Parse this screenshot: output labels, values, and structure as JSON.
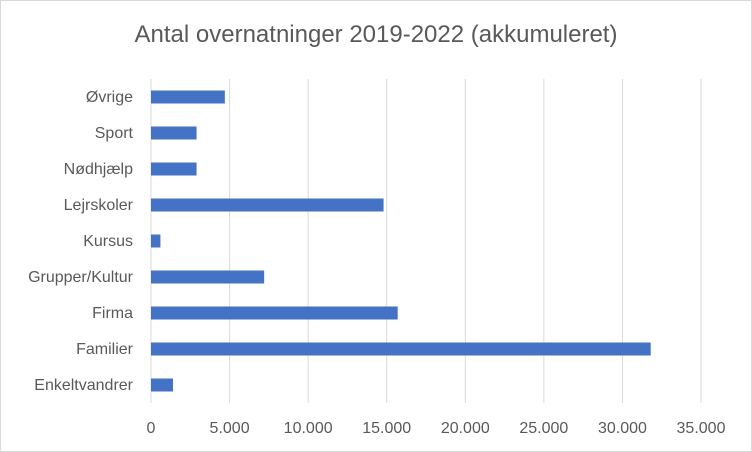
{
  "chart_data": {
    "type": "bar",
    "orientation": "horizontal",
    "title": "Antal overnatninger 2019-2022 (akkumuleret)",
    "categories": [
      "Øvrige",
      "Sport",
      "Nødhjælp",
      "Lejrskoler",
      "Kursus",
      "Grupper/Kultur",
      "Firma",
      "Familier",
      "Enkeltvandrer"
    ],
    "values": [
      4700,
      2900,
      2900,
      14800,
      600,
      7200,
      15700,
      31800,
      1400
    ],
    "xlabel": "",
    "ylabel": "",
    "xlim": [
      0,
      35000
    ],
    "x_ticks": [
      0,
      5000,
      10000,
      15000,
      20000,
      25000,
      30000,
      35000
    ],
    "x_tick_labels": [
      "0",
      "5.000",
      "10.000",
      "15.000",
      "20.000",
      "25.000",
      "30.000",
      "35.000"
    ],
    "grid": "vertical",
    "legend": "none",
    "bar_color": "#4472c4"
  }
}
